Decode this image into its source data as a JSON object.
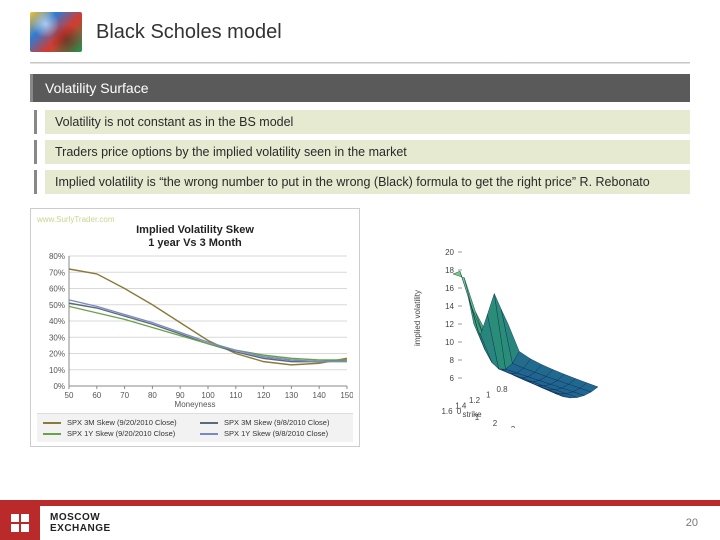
{
  "header": {
    "title": "Black Scholes model"
  },
  "section": {
    "label": "Volatility Surface"
  },
  "bullets": [
    "Volatility is not constant as in the BS model",
    "Traders price options by the implied volatility seen in the market",
    "Implied volatility is “the wrong number to put in the wrong (Black) formula to get the right price” R. Rebonato"
  ],
  "skew_chart": {
    "type": "line",
    "watermark": "www.SurlyTrader.com",
    "title_line1": "Implied Volatility Skew",
    "title_line2": "1 year Vs 3 Month",
    "xlabel": "Moneyness",
    "x_ticks": [
      50,
      60,
      70,
      80,
      90,
      100,
      110,
      120,
      130,
      140,
      150
    ],
    "y_ticks": [
      "0%",
      "10%",
      "20%",
      "30%",
      "40%",
      "50%",
      "60%",
      "70%",
      "80%"
    ],
    "xlim": [
      50,
      150
    ],
    "ylim": [
      0,
      80
    ],
    "grid_color": "#d9d9d9",
    "background_color": "#ffffff",
    "axis_fontsize": 8,
    "series": [
      {
        "label": "SPX 3M Skew (9/20/2010 Close)",
        "color": "#8a7a3a",
        "x": [
          50,
          60,
          70,
          80,
          90,
          100,
          110,
          120,
          130,
          140,
          150
        ],
        "y": [
          72,
          69,
          60,
          50,
          39,
          28,
          20,
          15,
          13,
          14,
          17
        ]
      },
      {
        "label": "SPX 3M Skew (9/8/2010 Close)",
        "color": "#5a6a78",
        "x": [
          50,
          60,
          70,
          80,
          90,
          100,
          110,
          120,
          130,
          140,
          150
        ],
        "y": [
          51,
          48,
          43,
          38,
          32,
          26,
          21,
          17,
          15,
          15,
          16
        ]
      },
      {
        "label": "SPX 1Y Skew (9/20/2010 Close)",
        "color": "#6aa24a",
        "x": [
          50,
          60,
          70,
          80,
          90,
          100,
          110,
          120,
          130,
          140,
          150
        ],
        "y": [
          49,
          45,
          41,
          36,
          31,
          26,
          22,
          19,
          17,
          16,
          16
        ]
      },
      {
        "label": "SPX 1Y Skew (9/8/2010 Close)",
        "color": "#7a88c4",
        "x": [
          50,
          60,
          70,
          80,
          90,
          100,
          110,
          120,
          130,
          140,
          150
        ],
        "y": [
          53,
          49,
          44,
          39,
          33,
          27,
          22,
          18,
          16,
          15,
          15
        ]
      }
    ]
  },
  "surface": {
    "type": "surface3d",
    "zlabel": "implied volatility",
    "xlabel": "strike",
    "ylabel": "maturity",
    "z_ticks": [
      6,
      8,
      10,
      12,
      14,
      16,
      18,
      20
    ],
    "x_ticks": [
      0.8,
      1,
      1.2,
      1.4,
      1.6
    ],
    "y_ticks": [
      0,
      1,
      2,
      3,
      4,
      5
    ],
    "color_low": "#1a4fa0",
    "color_mid": "#2f9e6e",
    "color_high": "#7dd67d",
    "edge_color": "#0d2a55"
  },
  "footer": {
    "brand_line1": "MOSCOW",
    "brand_line2": "EXCHANGE",
    "brand_color": "#bb2a2a",
    "page": "20"
  }
}
